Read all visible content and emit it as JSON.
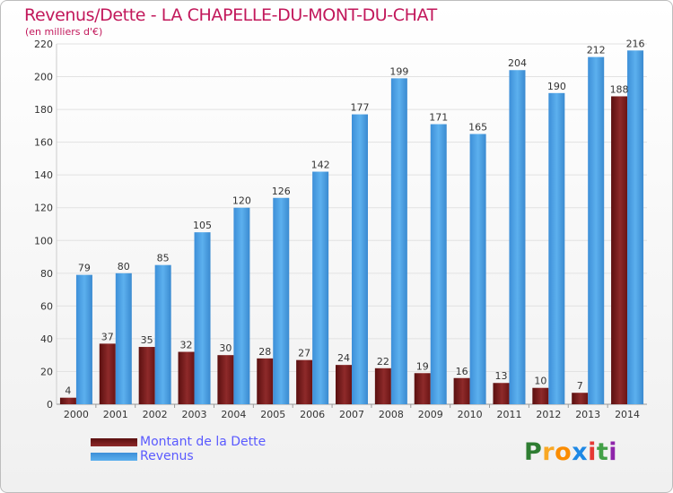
{
  "chart_data": {
    "type": "bar",
    "title": "Revenus/Dette - LA CHAPELLE-DU-MONT-DU-CHAT",
    "subtitle": "(en milliers d'€)",
    "categories": [
      "2000",
      "2001",
      "2002",
      "2003",
      "2004",
      "2005",
      "2006",
      "2007",
      "2008",
      "2009",
      "2010",
      "2011",
      "2012",
      "2013",
      "2014"
    ],
    "series": [
      {
        "name": "Montant de la Dette",
        "color": "#7a1c1c",
        "values": [
          4,
          37,
          35,
          32,
          30,
          28,
          27,
          24,
          22,
          19,
          16,
          13,
          10,
          7,
          188
        ]
      },
      {
        "name": "Revenus",
        "color": "#4da3e6",
        "values": [
          79,
          80,
          85,
          105,
          120,
          126,
          142,
          177,
          199,
          171,
          165,
          204,
          190,
          212,
          216
        ]
      }
    ],
    "ylim": [
      0,
      220
    ],
    "yticks": [
      0,
      20,
      40,
      60,
      80,
      100,
      120,
      140,
      160,
      180,
      200,
      220
    ],
    "grid": true,
    "legend": "bottom-left"
  },
  "logo": {
    "letters": [
      {
        "char": "P",
        "color": "#2e7d32"
      },
      {
        "char": "r",
        "color": "#f9a825"
      },
      {
        "char": "o",
        "color": "#fb8c00"
      },
      {
        "char": "x",
        "color": "#1e88e5"
      },
      {
        "char": "i",
        "color": "#e53935"
      },
      {
        "char": "t",
        "color": "#43a047"
      },
      {
        "char": "i",
        "color": "#8e24aa"
      }
    ]
  }
}
